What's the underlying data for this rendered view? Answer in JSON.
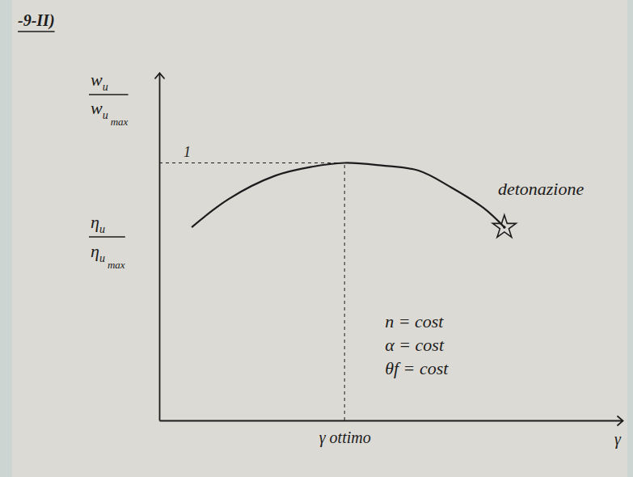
{
  "chart_data": {
    "type": "line",
    "title": "-9-II)",
    "y_label": [
      {
        "numerator": {
          "base": "w",
          "sub": "u"
        },
        "denominator": {
          "base": "w",
          "sub": "u",
          "subsub": "max"
        }
      },
      {
        "numerator": {
          "base": "η",
          "sub": "u"
        },
        "denominator": {
          "base": "η",
          "sub": "u",
          "subsub": "max"
        }
      }
    ],
    "x_label": "γ",
    "x": [
      0.7,
      1.5,
      2.5,
      3.3,
      4.0,
      4.8,
      5.6,
      6.3,
      7.0,
      7.45
    ],
    "values": [
      0.75,
      0.86,
      0.95,
      0.985,
      1.0,
      0.99,
      0.97,
      0.905,
      0.825,
      0.75
    ],
    "color": "#1c1c1c",
    "marker": "star",
    "end_label": "detonazione",
    "annotations": [
      "n = cost",
      "α = cost",
      "θf = cost"
    ],
    "xlim": [
      0,
      10
    ],
    "ylim": [
      0,
      1.35
    ],
    "xticks": [
      {
        "value": 4,
        "label": "γ ottimo"
      }
    ],
    "yticks": [
      1
    ],
    "grid": true
  }
}
